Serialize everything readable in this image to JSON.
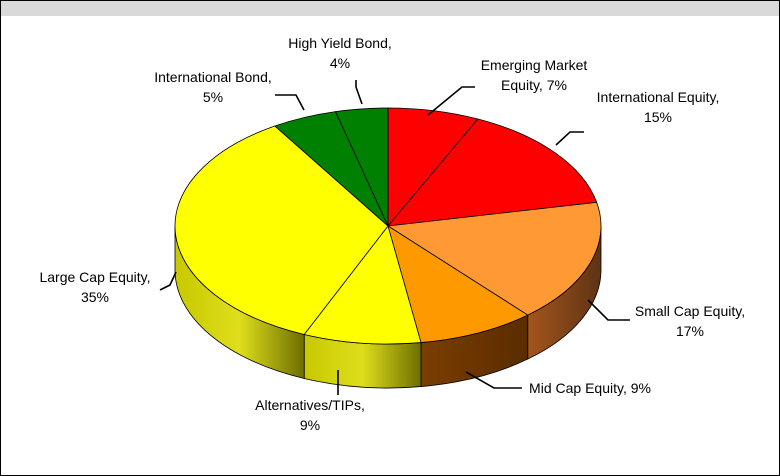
{
  "chart_data": {
    "type": "pie",
    "title": "",
    "slices": [
      {
        "label": "Emerging Market Equity",
        "value": 7,
        "value_text": "7%",
        "color": "#ff0000",
        "lines": [
          "Emerging Market",
          "Equity, 7%"
        ]
      },
      {
        "label": "International Equity",
        "value": 15,
        "value_text": "15%",
        "color": "#ff0000",
        "lines": [
          "International Equity,",
          "15%"
        ]
      },
      {
        "label": "Small Cap Equity",
        "value": 17,
        "value_text": "17%",
        "color": "#ff9933",
        "lines": [
          "Small Cap Equity,",
          "17%"
        ]
      },
      {
        "label": "Mid Cap Equity",
        "value": 9,
        "value_text": "9%",
        "color": "#ff9900",
        "lines": [
          "Mid Cap Equity, 9%"
        ]
      },
      {
        "label": "Alternatives/TIPs",
        "value": 9,
        "value_text": "9%",
        "color": "#ffff00",
        "lines": [
          "Alternatives/TIPs,",
          "9%"
        ]
      },
      {
        "label": "Large Cap Equity",
        "value": 35,
        "value_text": "35%",
        "color": "#ffff00",
        "lines": [
          "Large Cap Equity,",
          "35%"
        ]
      },
      {
        "label": "International Bond",
        "value": 5,
        "value_text": "5%",
        "color": "#008000",
        "lines": [
          "International Bond,",
          "5%"
        ]
      },
      {
        "label": "High Yield Bond",
        "value": 4,
        "value_text": "4%",
        "color": "#008000",
        "lines": [
          "High Yield Bond,",
          "4%"
        ]
      }
    ]
  }
}
